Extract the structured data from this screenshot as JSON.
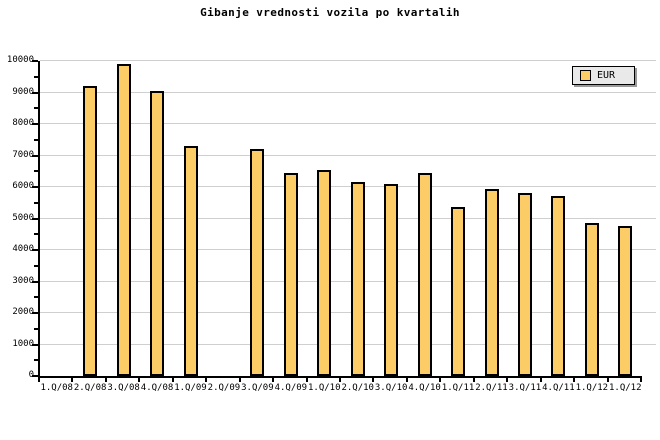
{
  "title": "Gibanje vrednosti vozila po kvartalih",
  "legend": {
    "position": "top-right",
    "items": [
      {
        "label": "EUR",
        "swatch_color": "#FCCC66"
      }
    ]
  },
  "colors": {
    "background": "#FFFFFF",
    "bar_fill": "#FCCC66",
    "bar_border": "#000000",
    "gridline": "#CFCFCF",
    "axis": "#000000",
    "text": "#000000",
    "legend_bg": "#E9E9E9",
    "legend_border": "#000000",
    "legend_shadow": "#999999"
  },
  "chart_data": {
    "type": "bar",
    "title": "Gibanje vrednosti vozila po kvartalih",
    "categories": [
      "1.Q/08",
      "2.Q/08",
      "3.Q/08",
      "4.Q/08",
      "1.Q/09",
      "2.Q/09",
      "3.Q/09",
      "4.Q/09",
      "1.Q/10",
      "2.Q/10",
      "3.Q/10",
      "4.Q/10",
      "1.Q/11",
      "2.Q/11",
      "3.Q/11",
      "4.Q/11",
      "1.Q/12",
      "1.Q/12"
    ],
    "series": [
      {
        "name": "EUR",
        "color": "#FCCC66",
        "values": [
          null,
          9200,
          9900,
          9050,
          7300,
          null,
          7200,
          6450,
          6550,
          6150,
          6100,
          6450,
          5350,
          5950,
          5800,
          5700,
          4850,
          4750
        ]
      }
    ],
    "xlabel": "",
    "ylabel": "",
    "ylim": [
      0,
      10000
    ],
    "ytick_step": 1000,
    "yminor_step": 500,
    "ytick_labels": [
      "0",
      "1000",
      "2000",
      "3000",
      "4000",
      "5000",
      "6000",
      "7000",
      "8000",
      "9000",
      "10000"
    ],
    "grid": "horizontal-major",
    "legend_position": "top-right"
  }
}
